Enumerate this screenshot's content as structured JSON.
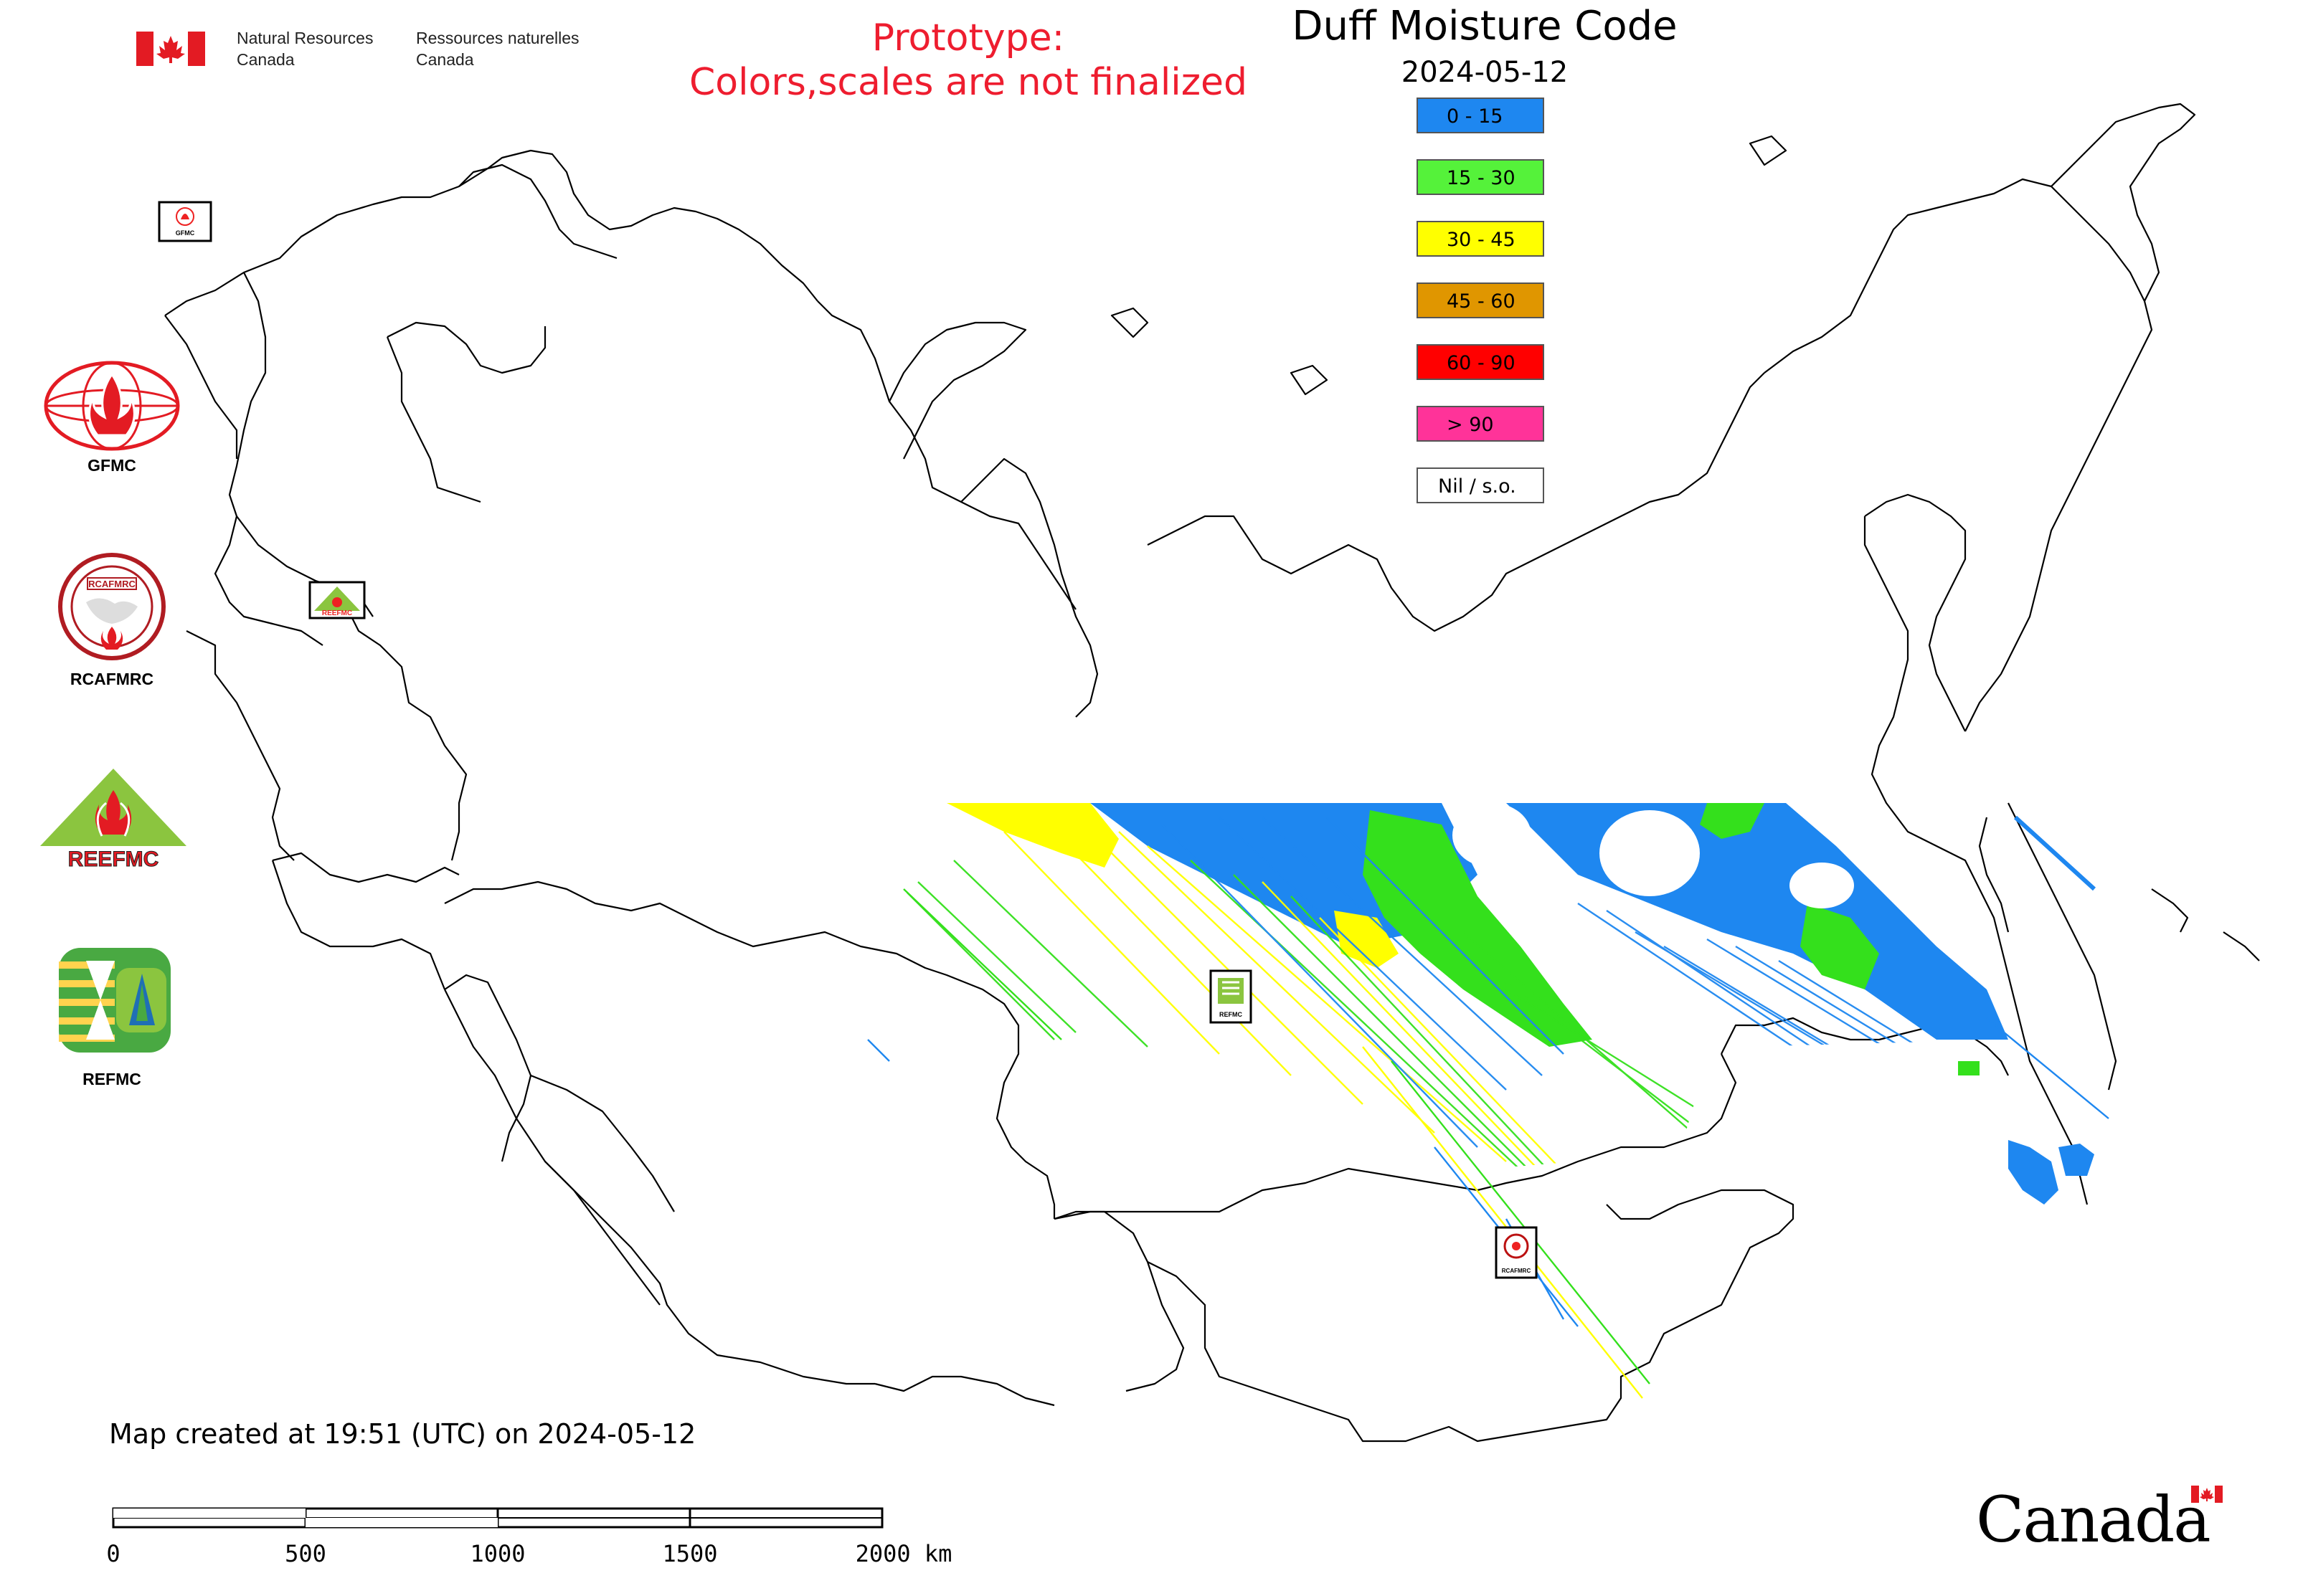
{
  "header": {
    "org_en_line1": "Natural Resources",
    "org_en_line2": "Canada",
    "org_fr_line1": "Ressources naturelles",
    "org_fr_line2": "Canada",
    "prototype_line1": "Prototype:",
    "prototype_line2": "Colors,scales are not finalized",
    "prototype_color": "#ee1d2f"
  },
  "map": {
    "title": "Duff Moisture Code",
    "date": "2024-05-12",
    "legend": [
      {
        "label": "0 - 15",
        "color": "#1e87f0"
      },
      {
        "label": "15 - 30",
        "color": "#55f23a"
      },
      {
        "label": "30 - 45",
        "color": "#ffff00"
      },
      {
        "label": "45 - 60",
        "color": "#e09600"
      },
      {
        "label": "60 - 90",
        "color": "#ff0000"
      },
      {
        "label": "> 90",
        "color": "#ff3399"
      },
      {
        "label": "Nil / s.o.",
        "color": "#ffffff"
      }
    ],
    "colors": {
      "boundary": "#000000",
      "blue": "#1e87f0",
      "green": "#34e01c",
      "yellow": "#ffff00"
    }
  },
  "side_logos": [
    {
      "label": "GFMC",
      "icon": "gfmc-logo-icon"
    },
    {
      "label": "RCAFMRC",
      "icon": "rcafmrc-logo-icon"
    },
    {
      "label": "REEFMC",
      "icon": "reefmc-logo-icon"
    },
    {
      "label": "REFMC",
      "icon": "refmc-logo-icon"
    }
  ],
  "map_markers": [
    {
      "label": "GFMC"
    },
    {
      "label": "REEFMC"
    },
    {
      "label": "REFMC"
    },
    {
      "label": "RCAFMRC"
    }
  ],
  "footer": {
    "created_text": "Map created at 19:51 (UTC) on 2024-05-12",
    "scale_ticks": [
      "0",
      "500",
      "1000",
      "1500",
      "2000 km"
    ],
    "wordmark": "Canada"
  }
}
